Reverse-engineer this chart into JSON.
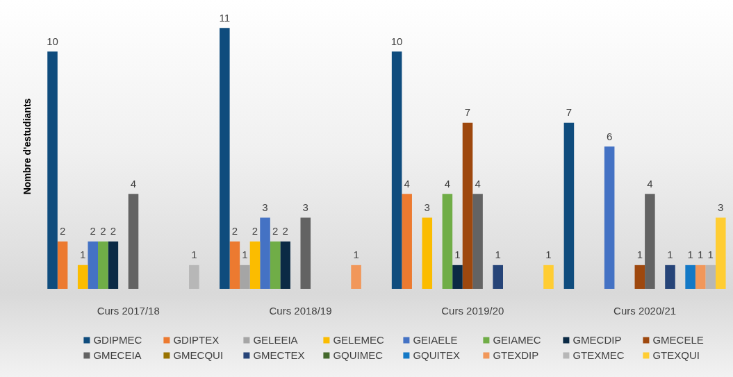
{
  "chart_data": {
    "type": "bar",
    "ylabel": "Nombre d'estudiants",
    "categories": [
      "Curs 2017/18",
      "Curs 2018/19",
      "Curs 2019/20",
      "Curs 2020/21"
    ],
    "series": [
      {
        "name": "GDIPMEC",
        "color": "#0f4c7d",
        "values": [
          10,
          11,
          10,
          7
        ]
      },
      {
        "name": "GDIPTEX",
        "color": "#ec7a30",
        "values": [
          2,
          2,
          4,
          null
        ]
      },
      {
        "name": "GELEEIA",
        "color": "#a5a5a5",
        "values": [
          null,
          1,
          null,
          null
        ]
      },
      {
        "name": "GELEMEC",
        "color": "#fbbc00",
        "values": [
          1,
          2,
          3,
          null
        ]
      },
      {
        "name": "GEIAELE",
        "color": "#4472c4",
        "values": [
          2,
          3,
          null,
          6
        ]
      },
      {
        "name": "GEIAMEC",
        "color": "#70ad47",
        "values": [
          2,
          2,
          4,
          null
        ]
      },
      {
        "name": "GMECDIP",
        "color": "#0b2a45",
        "values": [
          2,
          2,
          1,
          null
        ]
      },
      {
        "name": "GMECELE",
        "color": "#9e480e",
        "values": [
          null,
          null,
          7,
          1
        ]
      },
      {
        "name": "GMECEIA",
        "color": "#636363",
        "values": [
          4,
          3,
          4,
          4
        ]
      },
      {
        "name": "GMECQUI",
        "color": "#997300",
        "values": [
          null,
          null,
          null,
          null
        ]
      },
      {
        "name": "GMECTEX",
        "color": "#264478",
        "values": [
          null,
          null,
          1,
          1
        ]
      },
      {
        "name": "GQUIMEC",
        "color": "#43682b",
        "values": [
          null,
          null,
          null,
          null
        ]
      },
      {
        "name": "GQUITEX",
        "color": "#1479c6",
        "values": [
          null,
          null,
          null,
          1
        ]
      },
      {
        "name": "GTEXDIP",
        "color": "#f1975a",
        "values": [
          null,
          1,
          null,
          1
        ]
      },
      {
        "name": "GTEXMEC",
        "color": "#b7b7b7",
        "values": [
          1,
          null,
          null,
          1
        ]
      },
      {
        "name": "GTEXQUI",
        "color": "#ffcd33",
        "values": [
          null,
          null,
          1,
          3
        ]
      }
    ],
    "data_labels": true,
    "legend": "bottom",
    "tick_labels": "x"
  }
}
